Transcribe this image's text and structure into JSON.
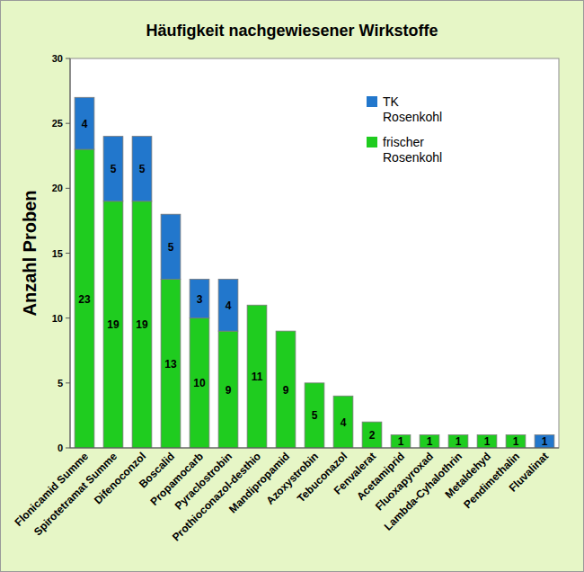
{
  "chart_data": {
    "type": "bar",
    "title": "Häufigkeit nachgewiesener Wirkstoffe",
    "y_label": "Anzahl Proben",
    "categories": [
      "Flonicamid Summe",
      "Spirotetramat Summe",
      "Difenoconzol",
      "Boscalid",
      "Propamocarb",
      "Pyraclostrobin",
      "Prothioconazol-desthio",
      "Mandipropamid",
      "Azoxystrobin",
      "Tebuconazol",
      "Fenvalerat",
      "Acetamiprid",
      "Fluoxapyroxad",
      "Lambda-Cyhalothrin",
      "Metaldehyd",
      "Pendimethalin",
      "Fluvalinat"
    ],
    "series": [
      {
        "name": "frischer Rosenkohl",
        "color": "#1fcc1f",
        "values": [
          23,
          19,
          19,
          13,
          10,
          9,
          11,
          9,
          5,
          4,
          2,
          1,
          1,
          1,
          1,
          1,
          0
        ]
      },
      {
        "name": "TK Rosenkohl",
        "color": "#2277cc",
        "values": [
          4,
          5,
          5,
          5,
          3,
          4,
          0,
          0,
          0,
          0,
          0,
          0,
          0,
          0,
          0,
          0,
          1
        ]
      }
    ],
    "ylim": [
      0,
      30
    ],
    "yticks": [
      0,
      5,
      10,
      15,
      20,
      25,
      30
    ],
    "stacked": true,
    "data_labels": true,
    "grid": false,
    "legend": "upper right"
  }
}
